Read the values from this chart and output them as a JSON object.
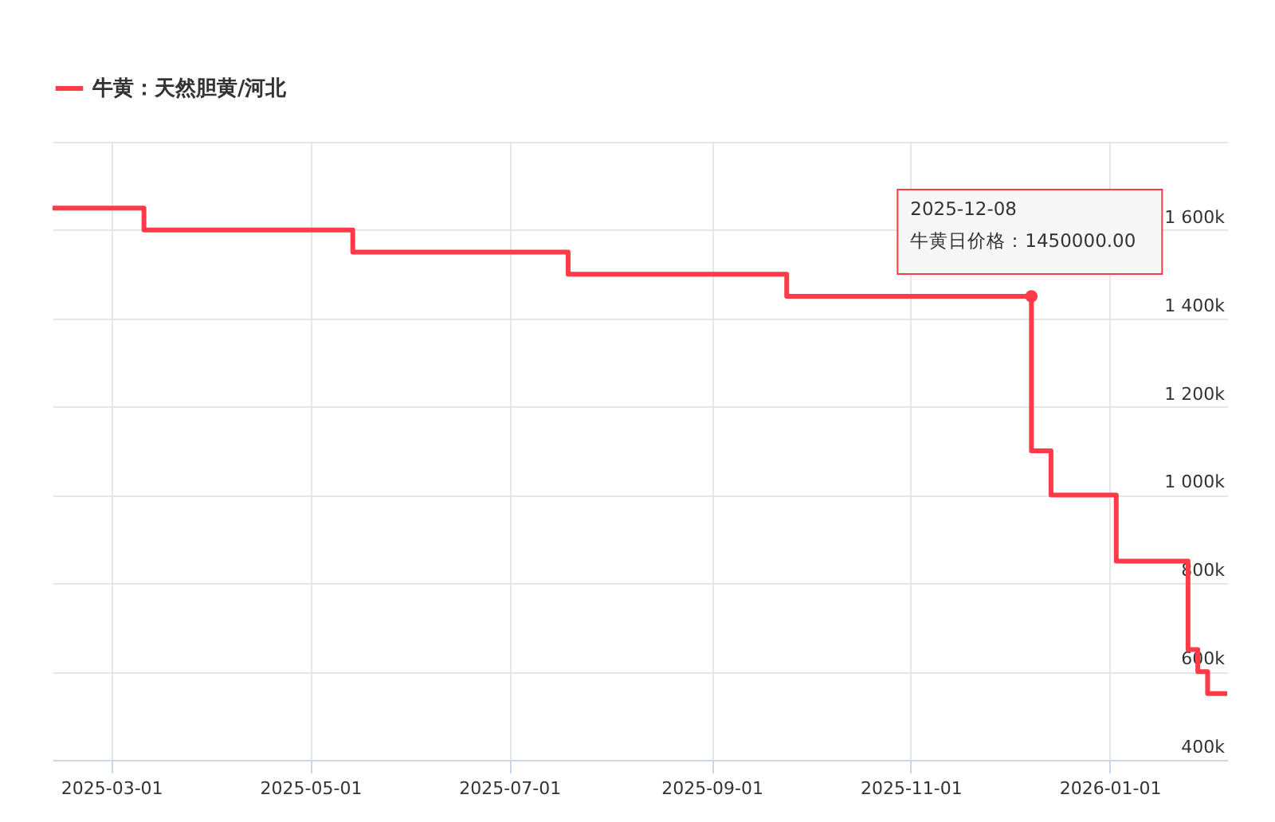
{
  "chart_data": {
    "type": "step",
    "legend": "top",
    "grid": true,
    "x": [
      "2025-02-11",
      "2025-03-11",
      "2025-05-14",
      "2025-07-19",
      "2025-09-24",
      "2025-12-08",
      "2025-12-14",
      "2026-01-03",
      "2026-01-25",
      "2026-01-28",
      "2026-01-31",
      "2026-02-06"
    ],
    "series": [
      {
        "name": "牛黄：天然胆黄/河北",
        "color": "#ff3b47",
        "values": [
          1650000,
          1600000,
          1550000,
          1500000,
          1450000,
          1100000,
          1000000,
          850000,
          650000,
          600000,
          550000,
          550000
        ]
      }
    ],
    "xlim": [
      "2025-02-11",
      "2026-02-06"
    ],
    "xticks": [
      "2025-03-01",
      "2025-05-01",
      "2025-07-01",
      "2025-09-01",
      "2025-11-01",
      "2026-01-01"
    ],
    "ylim": [
      400000,
      1800000
    ],
    "yticks": [
      {
        "value": 400000,
        "label": "400k"
      },
      {
        "value": 600000,
        "label": "600k"
      },
      {
        "value": 800000,
        "label": "800k"
      },
      {
        "value": 1000000,
        "label": "1 000k"
      },
      {
        "value": 1200000,
        "label": "1 200k"
      },
      {
        "value": 1400000,
        "label": "1 400k"
      },
      {
        "value": 1600000,
        "label": "1 600k"
      },
      {
        "value": 1800000,
        "label": null
      }
    ],
    "annotations": [
      {
        "text": "2025-12-08\n牛黄日价格：1450000.00",
        "x": "2025-12-08",
        "y": 1450000
      }
    ]
  }
}
